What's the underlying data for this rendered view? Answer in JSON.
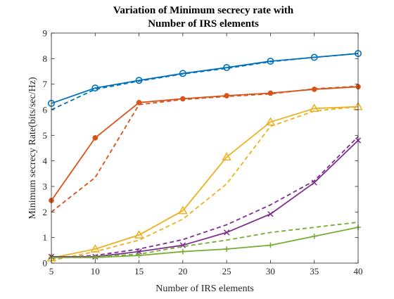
{
  "chart_data": {
    "type": "line",
    "title": [
      "Variation of Minimum secrecy rate with",
      "Number of IRS elements"
    ],
    "xlabel": "Number of IRS elements",
    "ylabel": "Minimum secrecy Rate(bits/sec/Hz)",
    "xlim": [
      5,
      40
    ],
    "ylim": [
      0,
      9
    ],
    "xticks": [
      5,
      10,
      15,
      20,
      25,
      30,
      35,
      40
    ],
    "yticks": [
      0,
      1,
      2,
      3,
      4,
      5,
      6,
      7,
      8,
      9
    ],
    "grid": false,
    "x": [
      5,
      10,
      15,
      20,
      25,
      30,
      35,
      40
    ],
    "series": [
      {
        "color": "#0072BD",
        "style": "solid",
        "marker": "circle",
        "values": [
          6.25,
          6.85,
          7.15,
          7.42,
          7.65,
          7.9,
          8.05,
          8.2
        ]
      },
      {
        "color": "#0072BD",
        "style": "dashed",
        "marker": "none",
        "values": [
          6.0,
          6.8,
          7.12,
          7.4,
          7.62,
          7.88,
          8.05,
          8.2
        ]
      },
      {
        "color": "#D95319",
        "style": "solid",
        "marker": "dot",
        "values": [
          2.45,
          4.9,
          6.28,
          6.43,
          6.55,
          6.65,
          6.8,
          6.9
        ]
      },
      {
        "color": "#D95319",
        "style": "dashed",
        "marker": "none",
        "values": [
          2.0,
          3.35,
          6.2,
          6.4,
          6.52,
          6.62,
          6.82,
          6.92
        ]
      },
      {
        "color": "#EDB120",
        "style": "solid",
        "marker": "triangle",
        "values": [
          0.2,
          0.55,
          1.1,
          2.05,
          4.15,
          5.52,
          6.05,
          6.12
        ]
      },
      {
        "color": "#EDB120",
        "style": "dashed",
        "marker": "none",
        "values": [
          0.1,
          0.45,
          0.9,
          1.72,
          3.1,
          5.35,
          5.95,
          6.12
        ]
      },
      {
        "color": "#7E2F8E",
        "style": "solid",
        "marker": "x",
        "values": [
          0.25,
          0.25,
          0.45,
          0.7,
          1.2,
          1.92,
          3.15,
          4.8
        ]
      },
      {
        "color": "#7E2F8E",
        "style": "dashed",
        "marker": "none",
        "values": [
          0.2,
          0.3,
          0.55,
          0.92,
          1.5,
          2.28,
          3.22,
          4.95
        ]
      },
      {
        "color": "#77AC30",
        "style": "solid",
        "marker": "plus",
        "values": [
          0.22,
          0.22,
          0.3,
          0.45,
          0.55,
          0.7,
          1.05,
          1.4
        ]
      },
      {
        "color": "#77AC30",
        "style": "dashed",
        "marker": "none",
        "values": [
          0.2,
          0.25,
          0.35,
          0.65,
          0.9,
          1.2,
          1.4,
          1.6
        ]
      }
    ]
  }
}
